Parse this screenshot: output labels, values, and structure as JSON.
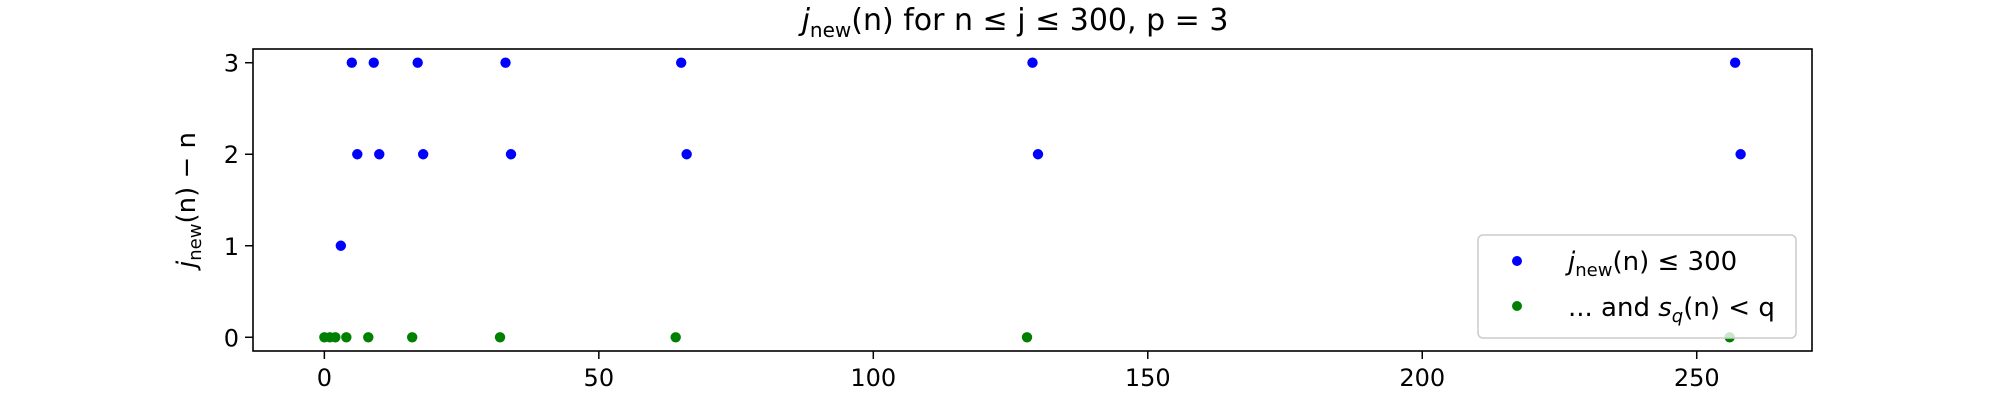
{
  "chart_data": {
    "type": "scatter",
    "title_parts": {
      "j": "j",
      "sub": "new",
      "n_paren": "(n)",
      "rest": " for n ≤ j ≤ 300, p = 3"
    },
    "ylabel_parts": {
      "j": "j",
      "sub": "new",
      "rest": "(n) − n"
    },
    "xlim": [
      -13,
      271
    ],
    "ylim": [
      -0.15,
      3.15
    ],
    "x_ticks": [
      0,
      50,
      100,
      150,
      200,
      250
    ],
    "x_tick_labels": [
      "0",
      "50",
      "100",
      "150",
      "200",
      "250"
    ],
    "y_ticks": [
      0,
      1,
      2,
      3
    ],
    "y_tick_labels": [
      "0",
      "1",
      "2",
      "3"
    ],
    "grid": false,
    "legend_position": "lower-right",
    "series": [
      {
        "color": "#0000ff",
        "legend_parts": {
          "j": "j",
          "sub": "new",
          "rest": "(n) ≤ 300"
        },
        "points": [
          {
            "x": 3,
            "y": 1
          },
          {
            "x": 5,
            "y": 3
          },
          {
            "x": 6,
            "y": 2
          },
          {
            "x": 9,
            "y": 3
          },
          {
            "x": 10,
            "y": 2
          },
          {
            "x": 17,
            "y": 3
          },
          {
            "x": 18,
            "y": 2
          },
          {
            "x": 33,
            "y": 3
          },
          {
            "x": 34,
            "y": 2
          },
          {
            "x": 65,
            "y": 3
          },
          {
            "x": 66,
            "y": 2
          },
          {
            "x": 129,
            "y": 3
          },
          {
            "x": 130,
            "y": 2
          },
          {
            "x": 257,
            "y": 3
          },
          {
            "x": 258,
            "y": 2
          }
        ]
      },
      {
        "color": "#008000",
        "legend_parts": {
          "pre": "... and ",
          "s": "s",
          "sub": "q",
          "rest": "(n) < q"
        },
        "points": [
          {
            "x": 0,
            "y": 0
          },
          {
            "x": 1,
            "y": 0
          },
          {
            "x": 2,
            "y": 0
          },
          {
            "x": 4,
            "y": 0
          },
          {
            "x": 8,
            "y": 0
          },
          {
            "x": 16,
            "y": 0
          },
          {
            "x": 32,
            "y": 0
          },
          {
            "x": 64,
            "y": 0
          },
          {
            "x": 128,
            "y": 0
          },
          {
            "x": 256,
            "y": 0
          }
        ]
      }
    ]
  }
}
